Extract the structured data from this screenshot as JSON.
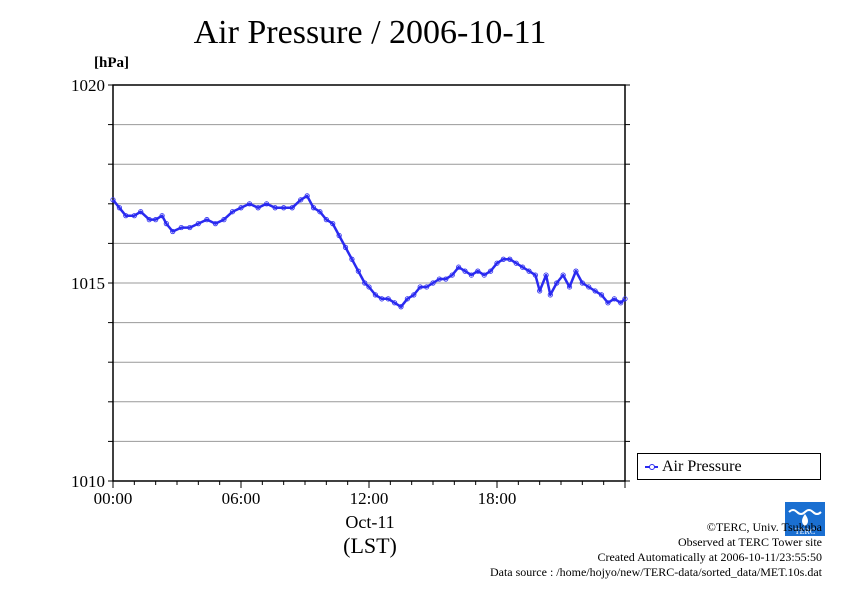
{
  "chart_data": {
    "type": "line",
    "title": "Air Pressure / 2006-10-11",
    "ylabel": "[hPa]",
    "xlabel": "(LST)",
    "x_date_label": "Oct-11",
    "ylim": [
      1010,
      1020
    ],
    "xlim_hours": [
      0,
      24
    ],
    "y_ticks": [
      "1010",
      "1015",
      "1020"
    ],
    "y_minor_step": 1,
    "x_ticks": [
      {
        "hour": 0,
        "label": "00:00"
      },
      {
        "hour": 6,
        "label": "06:00"
      },
      {
        "hour": 12,
        "label": "12:00"
      },
      {
        "hour": 18,
        "label": "18:00"
      }
    ],
    "grid": true,
    "legend_position": "right-bottom",
    "series": [
      {
        "name": "Air Pressure",
        "color": "#2a2af0",
        "points": [
          [
            0.0,
            1017.1
          ],
          [
            0.3,
            1016.9
          ],
          [
            0.6,
            1016.7
          ],
          [
            1.0,
            1016.7
          ],
          [
            1.3,
            1016.8
          ],
          [
            1.7,
            1016.6
          ],
          [
            2.0,
            1016.6
          ],
          [
            2.3,
            1016.7
          ],
          [
            2.5,
            1016.5
          ],
          [
            2.8,
            1016.3
          ],
          [
            3.2,
            1016.4
          ],
          [
            3.6,
            1016.4
          ],
          [
            4.0,
            1016.5
          ],
          [
            4.4,
            1016.6
          ],
          [
            4.8,
            1016.5
          ],
          [
            5.2,
            1016.6
          ],
          [
            5.6,
            1016.8
          ],
          [
            6.0,
            1016.9
          ],
          [
            6.4,
            1017.0
          ],
          [
            6.8,
            1016.9
          ],
          [
            7.2,
            1017.0
          ],
          [
            7.6,
            1016.9
          ],
          [
            8.0,
            1016.9
          ],
          [
            8.4,
            1016.9
          ],
          [
            8.8,
            1017.1
          ],
          [
            9.1,
            1017.2
          ],
          [
            9.4,
            1016.9
          ],
          [
            9.7,
            1016.8
          ],
          [
            10.0,
            1016.6
          ],
          [
            10.3,
            1016.5
          ],
          [
            10.6,
            1016.2
          ],
          [
            10.9,
            1015.9
          ],
          [
            11.2,
            1015.6
          ],
          [
            11.5,
            1015.3
          ],
          [
            11.8,
            1015.0
          ],
          [
            12.0,
            1014.9
          ],
          [
            12.3,
            1014.7
          ],
          [
            12.6,
            1014.6
          ],
          [
            12.9,
            1014.6
          ],
          [
            13.2,
            1014.5
          ],
          [
            13.5,
            1014.4
          ],
          [
            13.8,
            1014.6
          ],
          [
            14.1,
            1014.7
          ],
          [
            14.4,
            1014.9
          ],
          [
            14.7,
            1014.9
          ],
          [
            15.0,
            1015.0
          ],
          [
            15.3,
            1015.1
          ],
          [
            15.6,
            1015.1
          ],
          [
            15.9,
            1015.2
          ],
          [
            16.2,
            1015.4
          ],
          [
            16.5,
            1015.3
          ],
          [
            16.8,
            1015.2
          ],
          [
            17.1,
            1015.3
          ],
          [
            17.4,
            1015.2
          ],
          [
            17.7,
            1015.3
          ],
          [
            18.0,
            1015.5
          ],
          [
            18.3,
            1015.6
          ],
          [
            18.6,
            1015.6
          ],
          [
            18.9,
            1015.5
          ],
          [
            19.2,
            1015.4
          ],
          [
            19.5,
            1015.3
          ],
          [
            19.8,
            1015.2
          ],
          [
            20.0,
            1014.8
          ],
          [
            20.3,
            1015.2
          ],
          [
            20.5,
            1014.7
          ],
          [
            20.8,
            1015.0
          ],
          [
            21.1,
            1015.2
          ],
          [
            21.4,
            1014.9
          ],
          [
            21.7,
            1015.3
          ],
          [
            22.0,
            1015.0
          ],
          [
            22.3,
            1014.9
          ],
          [
            22.6,
            1014.8
          ],
          [
            22.9,
            1014.7
          ],
          [
            23.2,
            1014.5
          ],
          [
            23.5,
            1014.6
          ],
          [
            23.8,
            1014.5
          ],
          [
            24.0,
            1014.6
          ]
        ]
      }
    ]
  },
  "footer": {
    "copyright": "©TERC, Univ. Tsukuba",
    "observed": "Observed at TERC Tower site",
    "created": "Created Automatically at 2006-10-11/23:55:50",
    "source": "Data source : /home/hojyo/new/TERC-data/sorted_data/MET.10s.dat"
  },
  "logo": {
    "text": "TERC",
    "color": "#1a6fd1",
    "icon": "terc-logo-icon"
  }
}
